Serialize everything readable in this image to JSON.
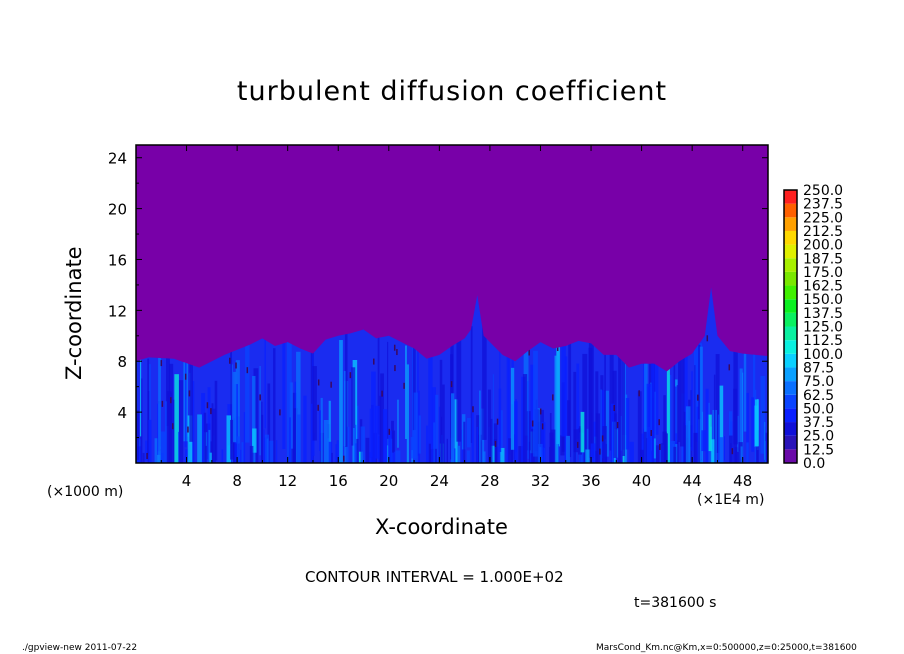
{
  "chart_data": {
    "type": "heatmap",
    "title": "turbulent diffusion coefficient",
    "xlabel": "X-coordinate",
    "ylabel": "Z-coordinate",
    "x_unit_label": "(×1000 m)",
    "x_unit_label2": "(×1E4 m)",
    "xlim": [
      0,
      50
    ],
    "ylim": [
      0,
      25
    ],
    "xticks": [
      "4",
      "8",
      "12",
      "16",
      "20",
      "24",
      "28",
      "32",
      "36",
      "40",
      "44",
      "48"
    ],
    "xtick_values": [
      4,
      8,
      12,
      16,
      20,
      24,
      28,
      32,
      36,
      40,
      44,
      48
    ],
    "yticks": [
      "4",
      "8",
      "12",
      "16",
      "20",
      "24"
    ],
    "ytick_values": [
      4,
      8,
      12,
      16,
      20,
      24
    ],
    "colorbar": {
      "levels": [
        "0.0",
        "12.5",
        "25.0",
        "37.5",
        "50.0",
        "62.5",
        "75.0",
        "87.5",
        "100.0",
        "112.5",
        "125.0",
        "137.5",
        "150.0",
        "162.5",
        "175.0",
        "187.5",
        "200.0",
        "212.5",
        "225.0",
        "237.5",
        "250.0"
      ],
      "colors": [
        "#6a0aa8",
        "#2a14b8",
        "#1010d8",
        "#0a20ff",
        "#0a44ff",
        "#0a70ff",
        "#0aa0ff",
        "#0ad0ff",
        "#0af0e0",
        "#0af0a0",
        "#0af060",
        "#0af020",
        "#40f000",
        "#7ae800",
        "#a8f000",
        "#e0f000",
        "#ffd800",
        "#ffa000",
        "#ff6000",
        "#ff2020",
        "#ff4050",
        "#ff8080"
      ]
    },
    "background_value_color": "#7800a8",
    "layer_top_profile": {
      "x": [
        0,
        1,
        3,
        5,
        7,
        9,
        10,
        11,
        12,
        13,
        14,
        15,
        16,
        17,
        18,
        19,
        20,
        21,
        22,
        23,
        24,
        25,
        26,
        26.5,
        27,
        27.5,
        28,
        29,
        30,
        31,
        32,
        33,
        34,
        35,
        36,
        37,
        38,
        39,
        40,
        41,
        42,
        43,
        44,
        45,
        45.5,
        46,
        47,
        48,
        49,
        50
      ],
      "z": [
        8,
        8.3,
        8.2,
        7.5,
        8.5,
        9.3,
        9.8,
        9.2,
        9.5,
        9,
        8.6,
        9.7,
        10,
        10.2,
        10.5,
        9.8,
        10,
        9.5,
        9,
        8.2,
        8.5,
        9.2,
        9.8,
        10.5,
        13.2,
        10,
        9.5,
        8.5,
        8,
        8.8,
        9.5,
        9,
        9.2,
        9.6,
        9.4,
        8.5,
        8.5,
        7.5,
        7.8,
        7.8,
        7.2,
        8,
        8.6,
        10,
        13.8,
        10,
        8.8,
        8.6,
        8.5,
        8.4
      ]
    },
    "contour_interval_text": "CONTOUR INTERVAL = 1.000E+02",
    "time_text": "t=381600 s"
  },
  "footer": {
    "left": "./gpview-new  2011-07-22",
    "right": "MarsCond_Km.nc@Km,x=0:500000,z=0:25000,t=381600"
  }
}
